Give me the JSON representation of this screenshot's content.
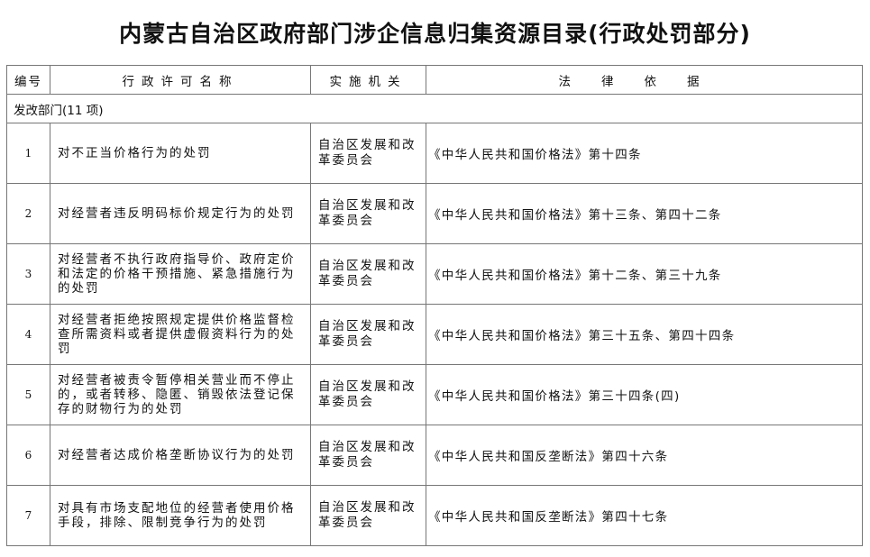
{
  "title": "内蒙古自治区政府部门涉企信息归集资源目录(行政处罚部分)",
  "headers": [
    "编号",
    "行政许可名称",
    "实施机关",
    "法律依据"
  ],
  "department": "发改部门(11 项)",
  "rows": [
    {
      "num": "1",
      "name": "对不正当价格行为的处罚",
      "org": "自治区发展和改革委员会",
      "law": "《中华人民共和国价格法》第十四条"
    },
    {
      "num": "2",
      "name": "对经营者违反明码标价规定行为的处罚",
      "org": "自治区发展和改革委员会",
      "law": "《中华人民共和国价格法》第十三条、第四十二条"
    },
    {
      "num": "3",
      "name": "对经营者不执行政府指导价、政府定价和法定的价格干预措施、紧急措施行为的处罚",
      "org": "自治区发展和改革委员会",
      "law": "《中华人民共和国价格法》第十二条、第三十九条"
    },
    {
      "num": "4",
      "name": "对经营者拒绝按照规定提供价格监督检查所需资料或者提供虚假资料行为的处罚",
      "org": "自治区发展和改革委员会",
      "law": "《中华人民共和国价格法》第三十五条、第四十四条"
    },
    {
      "num": "5",
      "name": "对经营者被责令暂停相关营业而不停止的，或者转移、隐匿、销毁依法登记保存的财物行为的处罚",
      "org": "自治区发展和改革委员会",
      "law": "《中华人民共和国价格法》第三十四条(四)"
    },
    {
      "num": "6",
      "name": "对经营者达成价格垄断协议行为的处罚",
      "org": "自治区发展和改革委员会",
      "law": "《中华人民共和国反垄断法》第四十六条"
    },
    {
      "num": "7",
      "name": "对具有市场支配地位的经营者使用价格手段，排除、限制竞争行为的处罚",
      "org": "自治区发展和改革委员会",
      "law": "《中华人民共和国反垄断法》第四十七条"
    }
  ]
}
